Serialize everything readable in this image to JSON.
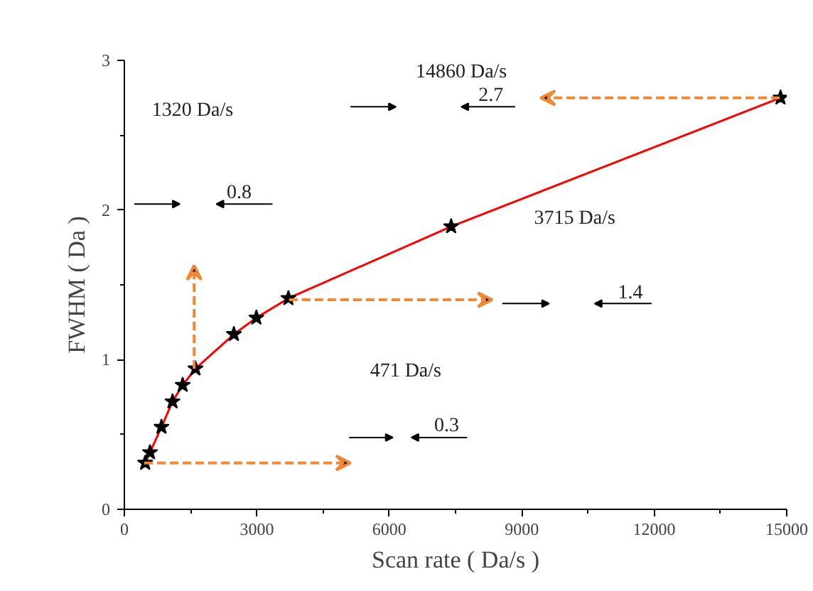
{
  "chart_data": {
    "type": "scatter",
    "xlabel": "Scan rate ( Da/s )",
    "ylabel": "FWHM ( Da )",
    "x": [
      471,
      580,
      840,
      1090,
      1320,
      1610,
      2480,
      2990,
      3715,
      7400,
      14860
    ],
    "series": [
      {
        "type": "line",
        "color": "#ff0000",
        "marker": "none",
        "values": [
          0.31,
          0.38,
          0.55,
          0.72,
          0.83,
          0.94,
          1.17,
          1.28,
          1.41,
          1.89,
          2.75
        ]
      },
      {
        "type": "scatter",
        "color": "#000000",
        "marker": "star",
        "values": [
          0.31,
          0.38,
          0.55,
          0.72,
          0.83,
          0.94,
          1.17,
          1.28,
          1.41,
          1.89,
          2.75
        ]
      }
    ],
    "xlim": [
      0,
      15000
    ],
    "xticks": [
      0,
      3000,
      6000,
      9000,
      12000,
      15000
    ],
    "ylim": [
      0,
      3
    ],
    "yticks": [
      0,
      1,
      2,
      3
    ],
    "grid": false,
    "annotations": [
      "14860 Da/s",
      "2.7",
      "1320 Da/s",
      "0.8",
      "3715 Da/s",
      "1.4",
      "471 Da/s",
      "0.3"
    ]
  }
}
